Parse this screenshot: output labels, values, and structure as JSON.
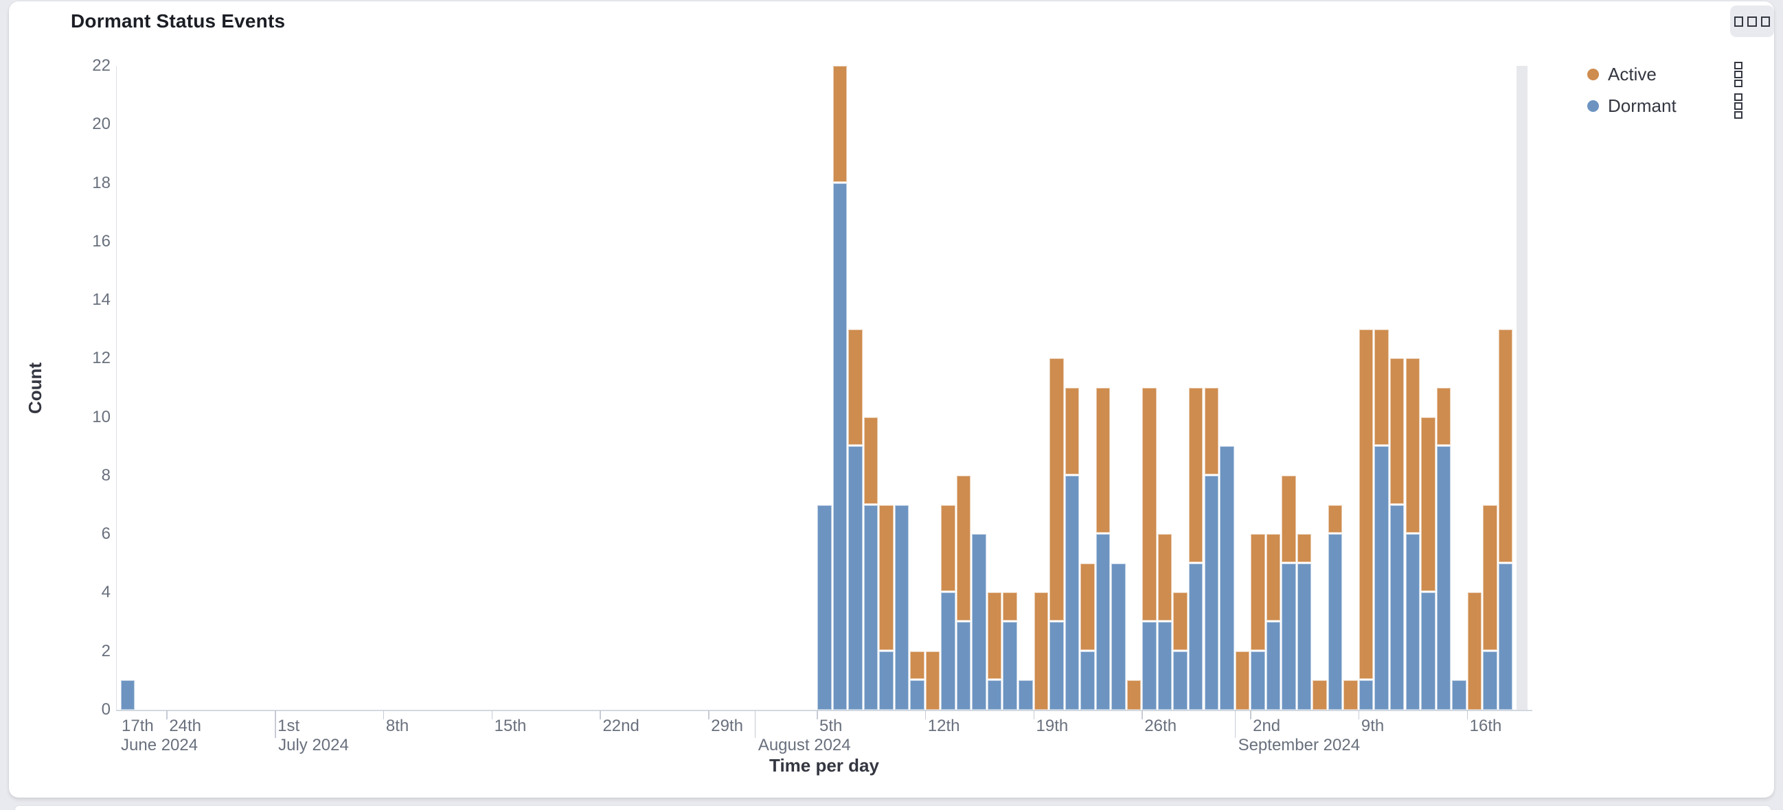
{
  "panel": {
    "title": "Dormant Status Events",
    "options_icon": "boxes-horizontal-icon"
  },
  "legend": {
    "items": [
      {
        "label": "Active",
        "color": "#CE8C4F"
      },
      {
        "label": "Dormant",
        "color": "#6D94C1"
      }
    ],
    "action_icon": "boxes-vertical-icon"
  },
  "chart_data": {
    "type": "bar",
    "stacked": true,
    "title": "Dormant Status Events",
    "xlabel": "Time per day",
    "ylabel": "Count",
    "ylim": [
      0,
      22
    ],
    "y_ticks": [
      0,
      2,
      4,
      6,
      8,
      10,
      12,
      14,
      16,
      18,
      20,
      22
    ],
    "grid": false,
    "legend_position": "right",
    "x_start_date": "2024-06-21",
    "x_end_date": "2024-09-19",
    "x_unit": "1 day",
    "partial_bucket_index": 90,
    "series": [
      {
        "name": "Dormant",
        "color": "#6D94C1",
        "values": [
          1,
          0,
          0,
          0,
          0,
          0,
          0,
          0,
          0,
          0,
          0,
          0,
          0,
          0,
          0,
          0,
          0,
          0,
          0,
          0,
          0,
          0,
          0,
          0,
          0,
          0,
          0,
          0,
          0,
          0,
          0,
          0,
          0,
          0,
          0,
          0,
          0,
          0,
          0,
          0,
          0,
          0,
          0,
          0,
          0,
          7,
          18,
          9,
          7,
          2,
          7,
          1,
          0,
          4,
          3,
          6,
          1,
          3,
          1,
          0,
          3,
          8,
          2,
          6,
          5,
          0,
          3,
          3,
          2,
          5,
          8,
          9,
          0,
          2,
          3,
          5,
          5,
          0,
          6,
          0,
          1,
          9,
          7,
          6,
          4,
          9,
          1,
          0,
          2,
          5,
          0
        ]
      },
      {
        "name": "Active",
        "color": "#CE8C4F",
        "values": [
          0,
          0,
          0,
          0,
          0,
          0,
          0,
          0,
          0,
          0,
          0,
          0,
          0,
          0,
          0,
          0,
          0,
          0,
          0,
          0,
          0,
          0,
          0,
          0,
          0,
          0,
          0,
          0,
          0,
          0,
          0,
          0,
          0,
          0,
          0,
          0,
          0,
          0,
          0,
          0,
          0,
          0,
          0,
          0,
          0,
          0,
          4,
          4,
          3,
          5,
          0,
          1,
          2,
          3,
          5,
          0,
          3,
          1,
          0,
          4,
          9,
          3,
          3,
          5,
          0,
          1,
          8,
          3,
          2,
          6,
          3,
          0,
          2,
          4,
          3,
          3,
          1,
          1,
          1,
          1,
          12,
          4,
          5,
          6,
          6,
          2,
          0,
          4,
          5,
          8,
          0
        ]
      }
    ],
    "week_ticks": [
      {
        "i": -4,
        "label": "17th",
        "clamped": true
      },
      {
        "i": 3,
        "label": "24th"
      },
      {
        "i": 10,
        "label": "1st"
      },
      {
        "i": 17,
        "label": "8th"
      },
      {
        "i": 24,
        "label": "15th"
      },
      {
        "i": 31,
        "label": "22nd"
      },
      {
        "i": 38,
        "label": "29th"
      },
      {
        "i": 45,
        "label": "5th"
      },
      {
        "i": 52,
        "label": "12th"
      },
      {
        "i": 59,
        "label": "19th"
      },
      {
        "i": 66,
        "label": "26th"
      },
      {
        "i": 73,
        "label": "2nd"
      },
      {
        "i": 80,
        "label": "9th"
      },
      {
        "i": 87,
        "label": "16th"
      }
    ],
    "month_ticks": [
      {
        "i": -1,
        "label": "June 2024",
        "clamped": true
      },
      {
        "i": 10,
        "label": "July 2024"
      },
      {
        "i": 41,
        "label": "August 2024"
      },
      {
        "i": 72,
        "label": "September 2024"
      }
    ],
    "colors": {
      "dormant": "#6D94C1",
      "active": "#CE8C4F",
      "partial_bucket": "#E7E8EC"
    }
  }
}
